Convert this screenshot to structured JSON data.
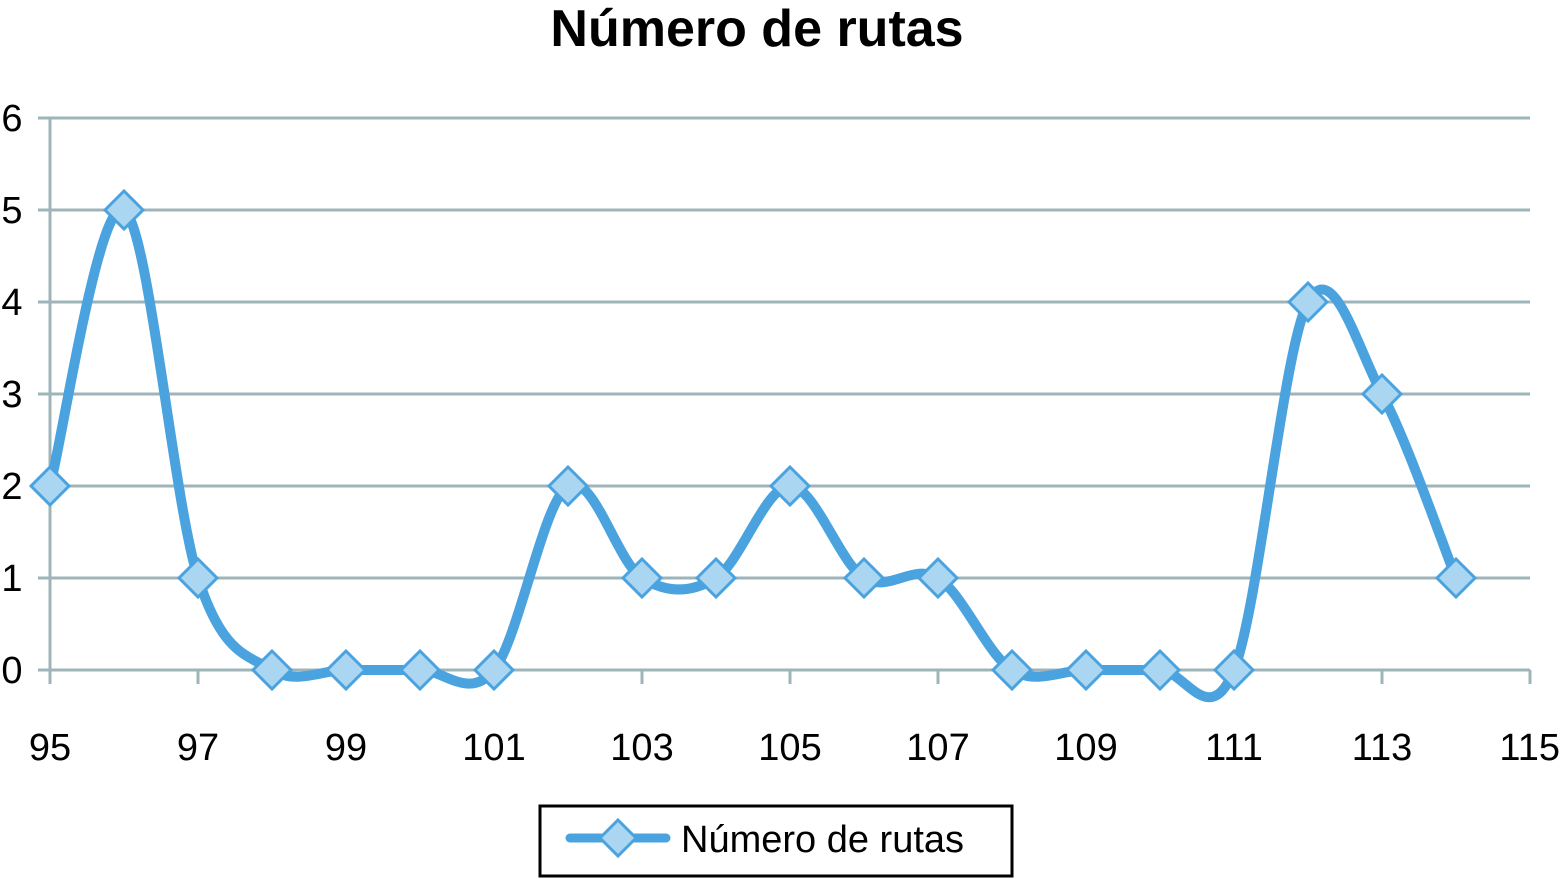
{
  "chart_data": {
    "type": "line",
    "title": "Número de rutas",
    "xlabel": "",
    "ylabel": "",
    "xlim": [
      95,
      115
    ],
    "ylim": [
      0,
      6
    ],
    "x_ticks": [
      "95",
      "97",
      "99",
      "101",
      "103",
      "105",
      "107",
      "109",
      "111",
      "113",
      "115"
    ],
    "y_ticks": [
      "0",
      "1",
      "2",
      "3",
      "4",
      "5",
      "6"
    ],
    "grid": true,
    "smooth": true,
    "legend_position": "bottom",
    "series": [
      {
        "name": "Número de rutas",
        "color": "#4aa3df",
        "marker": "diamond",
        "x": [
          95,
          96,
          97,
          98,
          99,
          100,
          101,
          102,
          103,
          104,
          105,
          106,
          107,
          108,
          109,
          110,
          111,
          112,
          113,
          114
        ],
        "values": [
          2,
          5,
          1,
          0,
          0,
          0,
          0,
          2,
          1,
          1,
          2,
          1,
          1,
          0,
          0,
          0,
          0,
          4,
          3,
          1
        ]
      }
    ]
  }
}
